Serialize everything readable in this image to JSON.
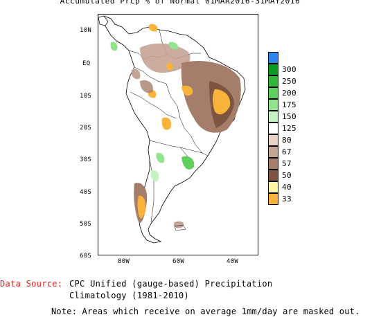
{
  "title": "Accumulated Prcp % of Normal 01MAR2016-31MAY2016",
  "map": {
    "region": "South America",
    "lat_labels": [
      "10N",
      "EQ",
      "10S",
      "20S",
      "30S",
      "40S",
      "50S",
      "60S"
    ],
    "lon_labels": [
      "80W",
      "60W",
      "40W"
    ]
  },
  "legend": {
    "items": [
      {
        "label": "",
        "color": "#2f86e8"
      },
      {
        "label": "300",
        "color": "#0c9a20"
      },
      {
        "label": "250",
        "color": "#2fb83a"
      },
      {
        "label": "200",
        "color": "#5fd05e"
      },
      {
        "label": "175",
        "color": "#93e48f"
      },
      {
        "label": "150",
        "color": "#c4f3c1"
      },
      {
        "label": "125",
        "color": "#ffffff"
      },
      {
        "label": "80",
        "color": "#e9d2c6"
      },
      {
        "label": "67",
        "color": "#c4a494"
      },
      {
        "label": "57",
        "color": "#a57e6b"
      },
      {
        "label": "50",
        "color": "#7f5440"
      },
      {
        "label": "40",
        "color": "#fef6a2"
      },
      {
        "label": "33",
        "color": "#f7b33a"
      }
    ]
  },
  "source": {
    "key": "Data Source:",
    "line1": "CPC Unified (gauge-based) Precipitation",
    "line2": "Climatology (1981-2010)"
  },
  "note": "Note: Areas which receive on average 1mm/day are masked out."
}
